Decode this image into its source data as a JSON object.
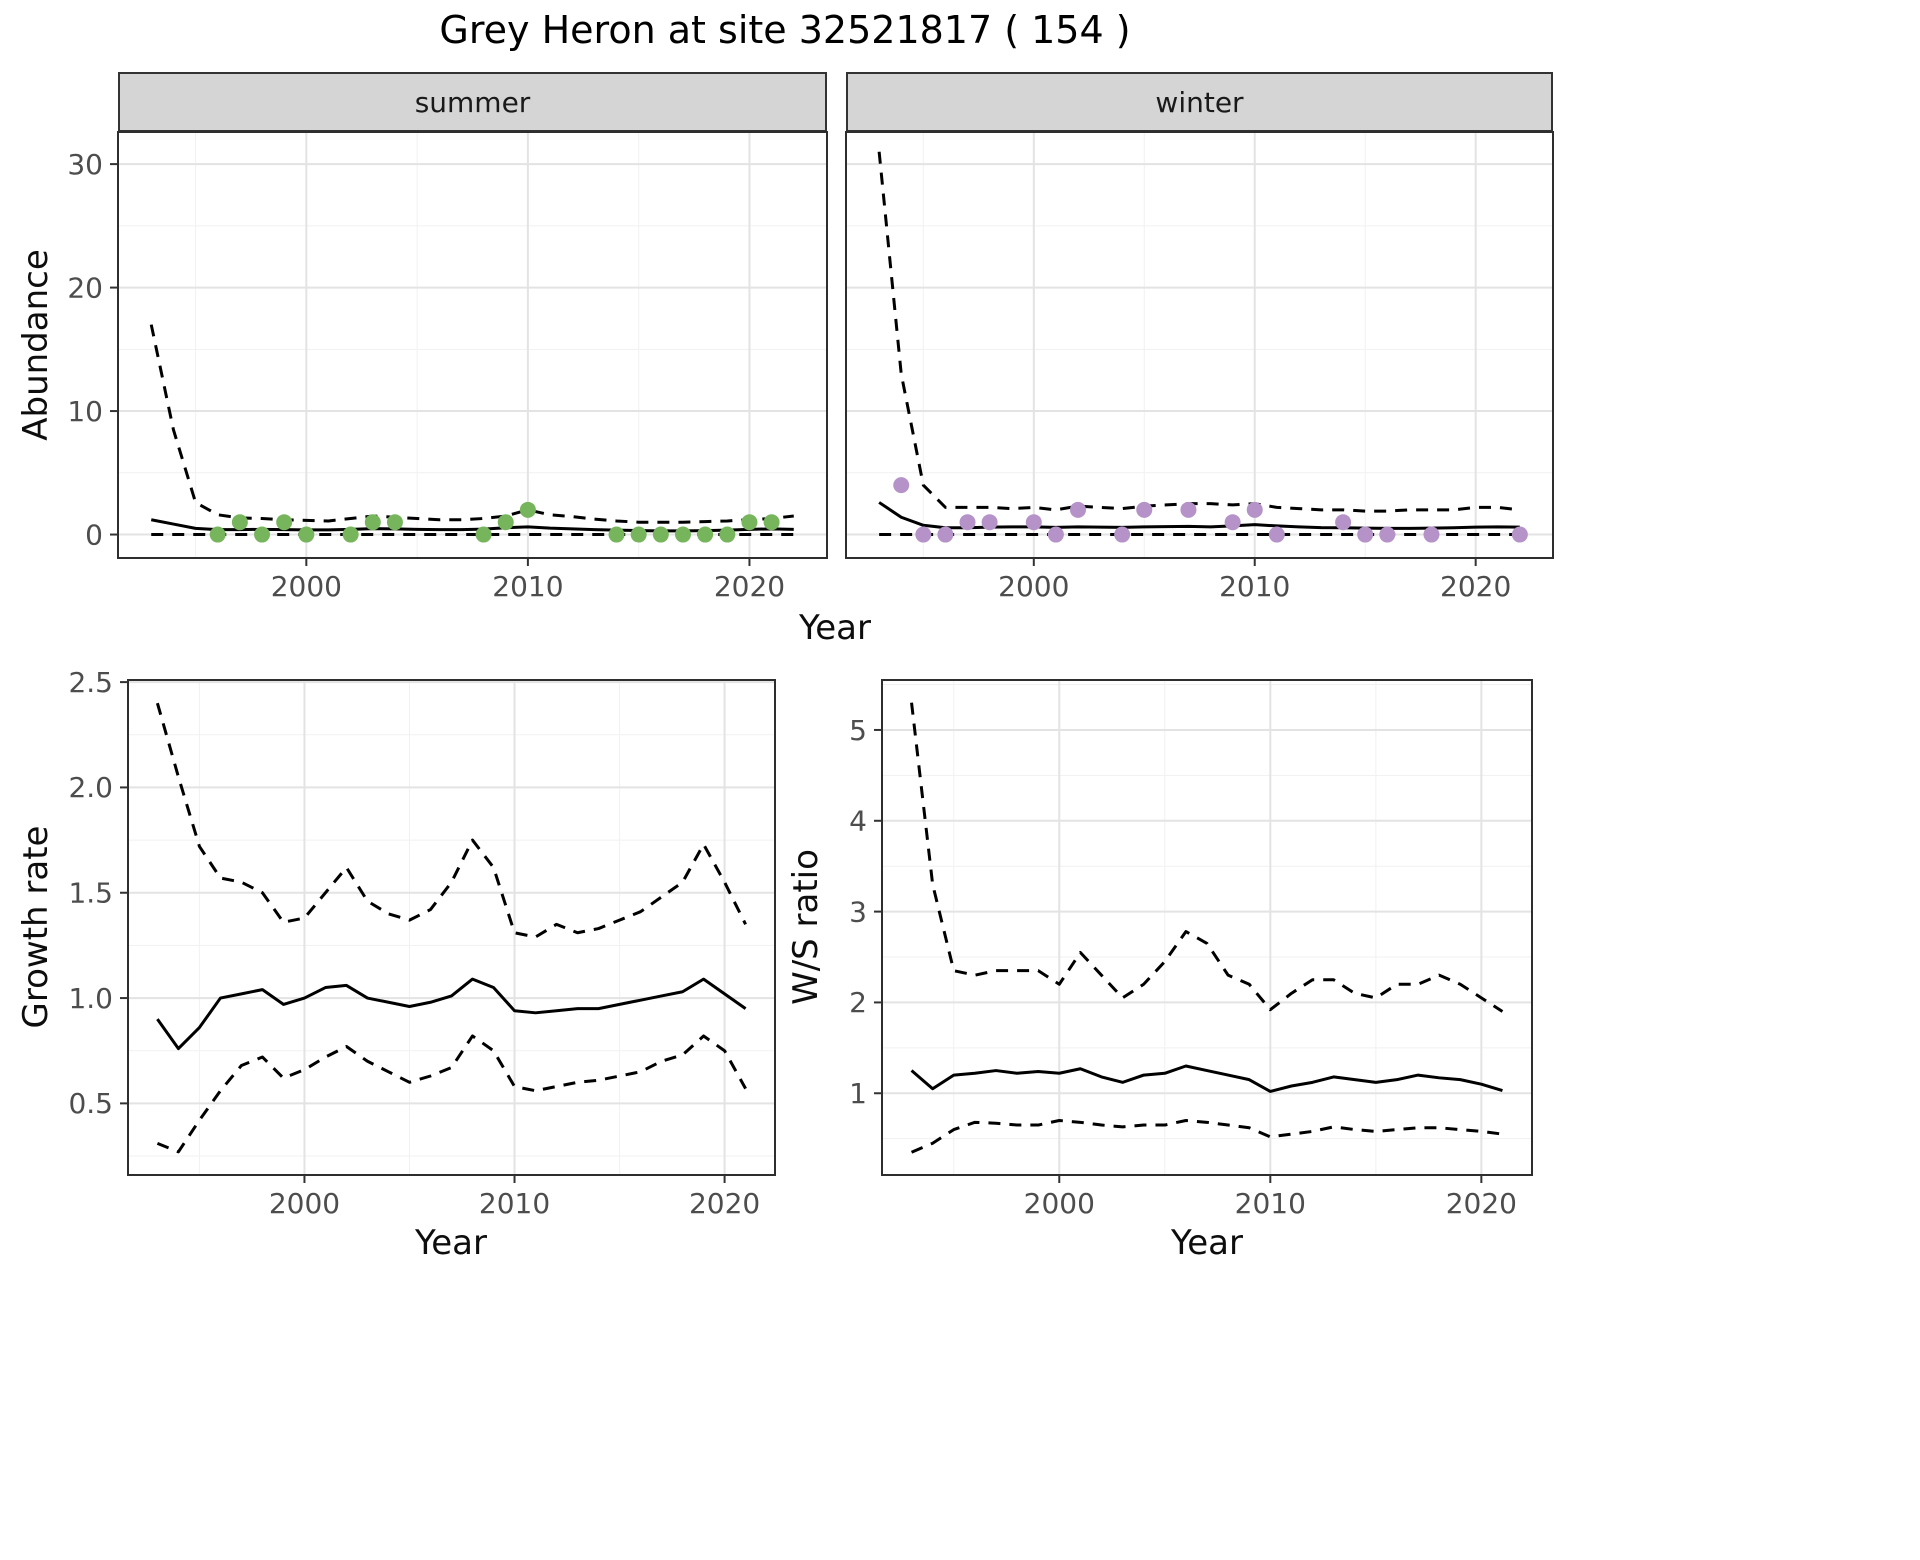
{
  "title": "Grey Heron at site 32521817 ( 154 )",
  "theme": {
    "panel_bg": "#ffffff",
    "grid_major": "#e3e3e3",
    "grid_minor": "#f1f1f1",
    "panel_border": "#2e2e2e",
    "strip_bg": "#d5d5d5",
    "line": "#000000",
    "tick": "#333333",
    "tick_text": "#4d4d4d",
    "summer_point": "#77b55d",
    "winter_point": "#b593c8"
  },
  "chart_data": [
    {
      "id": "abundance-summer",
      "type": "line",
      "facet_label": "summer",
      "xlabel": "Year",
      "ylabel": "Abundance",
      "xlim": [
        1991.5,
        2023.5
      ],
      "ylim": [
        -1.9,
        32.6
      ],
      "xticks": [
        {
          "v": 2000,
          "label": "2000"
        },
        {
          "v": 2010,
          "label": "2010"
        },
        {
          "v": 2020,
          "label": "2020"
        }
      ],
      "xminor": [
        1995,
        2005,
        2015
      ],
      "yticks": [
        {
          "v": 0,
          "label": "0"
        },
        {
          "v": 10,
          "label": "10"
        },
        {
          "v": 20,
          "label": "20"
        },
        {
          "v": 30,
          "label": "30"
        }
      ],
      "yminor": [
        5,
        15,
        25
      ],
      "years": [
        1993,
        1994,
        1995,
        1996,
        1997,
        1998,
        1999,
        2000,
        2001,
        2002,
        2003,
        2004,
        2005,
        2006,
        2007,
        2008,
        2009,
        2010,
        2011,
        2012,
        2013,
        2014,
        2015,
        2016,
        2017,
        2018,
        2019,
        2020,
        2021,
        2022
      ],
      "series": [
        {
          "name": "upper-ci",
          "style": "dashed",
          "values": [
            17,
            8.5,
            2.6,
            1.6,
            1.35,
            1.3,
            1.2,
            1.15,
            1.1,
            1.3,
            1.5,
            1.4,
            1.3,
            1.2,
            1.2,
            1.3,
            1.5,
            2,
            1.6,
            1.45,
            1.25,
            1.1,
            1,
            1,
            1,
            1.05,
            1.1,
            1.2,
            1.3,
            1.5
          ]
        },
        {
          "name": "median",
          "style": "solid",
          "values": [
            1.2,
            0.85,
            0.5,
            0.4,
            0.4,
            0.42,
            0.4,
            0.38,
            0.38,
            0.42,
            0.48,
            0.46,
            0.42,
            0.4,
            0.4,
            0.44,
            0.55,
            0.62,
            0.52,
            0.46,
            0.4,
            0.36,
            0.32,
            0.3,
            0.3,
            0.32,
            0.36,
            0.42,
            0.46,
            0.42
          ]
        },
        {
          "name": "lower-ci",
          "style": "dashed",
          "values": [
            0,
            0,
            0,
            0,
            0,
            0,
            0,
            0,
            0,
            0,
            0,
            0,
            0,
            0,
            0,
            0,
            0,
            0,
            0,
            0,
            0,
            0,
            0,
            0,
            0,
            0,
            0,
            0,
            0,
            0
          ]
        }
      ],
      "points": {
        "name": "observed-counts",
        "color": "#77b55d",
        "x": [
          1996,
          1997,
          1998,
          1999,
          2000,
          2002,
          2003,
          2004,
          2008,
          2009,
          2010,
          2014,
          2015,
          2016,
          2017,
          2018,
          2019,
          2020,
          2021
        ],
        "y": [
          0,
          1,
          0,
          1,
          0,
          0,
          1,
          1,
          0,
          1,
          2,
          0,
          0,
          0,
          0,
          0,
          0,
          1,
          1
        ]
      }
    },
    {
      "id": "abundance-winter",
      "type": "line",
      "facet_label": "winter",
      "xlabel": "Year",
      "ylabel": "Abundance",
      "xlim": [
        1991.5,
        2023.5
      ],
      "ylim": [
        -1.9,
        32.6
      ],
      "xticks": [
        {
          "v": 2000,
          "label": "2000"
        },
        {
          "v": 2010,
          "label": "2010"
        },
        {
          "v": 2020,
          "label": "2020"
        }
      ],
      "xminor": [
        1995,
        2005,
        2015
      ],
      "yticks": [
        {
          "v": 0,
          "label": "0"
        },
        {
          "v": 10,
          "label": "10"
        },
        {
          "v": 20,
          "label": "20"
        },
        {
          "v": 30,
          "label": "30"
        }
      ],
      "yminor": [
        5,
        15,
        25
      ],
      "years": [
        1993,
        1994,
        1995,
        1996,
        1997,
        1998,
        1999,
        2000,
        2001,
        2002,
        2003,
        2004,
        2005,
        2006,
        2007,
        2008,
        2009,
        2010,
        2011,
        2012,
        2013,
        2014,
        2015,
        2016,
        2017,
        2018,
        2019,
        2020,
        2021,
        2022
      ],
      "series": [
        {
          "name": "upper-ci",
          "style": "dashed",
          "values": [
            31,
            13,
            4,
            2.2,
            2.2,
            2.2,
            2.1,
            2.2,
            2,
            2.3,
            2.2,
            2.1,
            2.3,
            2.4,
            2.5,
            2.5,
            2.4,
            2.5,
            2.2,
            2.1,
            2,
            2,
            1.9,
            1.9,
            2,
            2,
            2,
            2.2,
            2.2,
            2
          ]
        },
        {
          "name": "median",
          "style": "solid",
          "values": [
            2.6,
            1.4,
            0.75,
            0.55,
            0.55,
            0.6,
            0.62,
            0.62,
            0.58,
            0.62,
            0.6,
            0.58,
            0.62,
            0.64,
            0.66,
            0.62,
            0.7,
            0.8,
            0.7,
            0.62,
            0.56,
            0.55,
            0.52,
            0.5,
            0.5,
            0.52,
            0.55,
            0.6,
            0.62,
            0.6
          ]
        },
        {
          "name": "lower-ci",
          "style": "dashed",
          "values": [
            0,
            0,
            0,
            0,
            0,
            0,
            0,
            0,
            0,
            0,
            0,
            0,
            0,
            0,
            0,
            0,
            0,
            0,
            0,
            0,
            0,
            0,
            0,
            0,
            0,
            0,
            0,
            0,
            0,
            0
          ]
        }
      ],
      "points": {
        "name": "observed-counts",
        "color": "#b593c8",
        "x": [
          1994,
          1995,
          1996,
          1997,
          1998,
          2000,
          2001,
          2002,
          2004,
          2005,
          2007,
          2009,
          2010,
          2011,
          2014,
          2015,
          2016,
          2018,
          2022
        ],
        "y": [
          4,
          0,
          0,
          1,
          1,
          1,
          0,
          2,
          0,
          2,
          2,
          1,
          2,
          0,
          1,
          0,
          0,
          0,
          0
        ]
      }
    },
    {
      "id": "growth-rate",
      "type": "line",
      "facet_label": "",
      "xlabel": "Year",
      "ylabel": "Growth rate",
      "xlim": [
        1991.6,
        2022.4
      ],
      "ylim": [
        0.16,
        2.51
      ],
      "xticks": [
        {
          "v": 2000,
          "label": "2000"
        },
        {
          "v": 2010,
          "label": "2010"
        },
        {
          "v": 2020,
          "label": "2020"
        }
      ],
      "xminor": [
        1995,
        2005,
        2015
      ],
      "yticks": [
        {
          "v": 0.5,
          "label": "0.5"
        },
        {
          "v": 1.0,
          "label": "1.0"
        },
        {
          "v": 1.5,
          "label": "1.5"
        },
        {
          "v": 2.0,
          "label": "2.0"
        },
        {
          "v": 2.5,
          "label": "2.5"
        }
      ],
      "yminor": [
        0.25,
        0.75,
        1.25,
        1.75,
        2.25
      ],
      "years": [
        1993,
        1994,
        1995,
        1996,
        1997,
        1998,
        1999,
        2000,
        2001,
        2002,
        2003,
        2004,
        2005,
        2006,
        2007,
        2008,
        2009,
        2010,
        2011,
        2012,
        2013,
        2014,
        2015,
        2016,
        2017,
        2018,
        2019,
        2020,
        2021
      ],
      "series": [
        {
          "name": "upper-ci",
          "style": "dashed",
          "values": [
            2.4,
            2.05,
            1.72,
            1.57,
            1.55,
            1.5,
            1.36,
            1.38,
            1.5,
            1.62,
            1.46,
            1.4,
            1.37,
            1.42,
            1.55,
            1.75,
            1.62,
            1.31,
            1.29,
            1.35,
            1.31,
            1.33,
            1.37,
            1.41,
            1.48,
            1.55,
            1.73,
            1.55,
            1.35
          ]
        },
        {
          "name": "median",
          "style": "solid",
          "values": [
            0.9,
            0.76,
            0.86,
            1,
            1.02,
            1.04,
            0.97,
            1,
            1.05,
            1.06,
            1,
            0.98,
            0.96,
            0.98,
            1.01,
            1.09,
            1.05,
            0.94,
            0.93,
            0.94,
            0.95,
            0.95,
            0.97,
            0.99,
            1.01,
            1.03,
            1.09,
            1.02,
            0.95
          ]
        },
        {
          "name": "lower-ci",
          "style": "dashed",
          "values": [
            0.31,
            0.27,
            0.42,
            0.56,
            0.68,
            0.72,
            0.62,
            0.66,
            0.72,
            0.77,
            0.7,
            0.65,
            0.6,
            0.63,
            0.67,
            0.82,
            0.75,
            0.58,
            0.56,
            0.58,
            0.6,
            0.61,
            0.63,
            0.65,
            0.7,
            0.73,
            0.82,
            0.75,
            0.57
          ]
        }
      ]
    },
    {
      "id": "ws-ratio",
      "type": "line",
      "facet_label": "",
      "xlabel": "Year",
      "ylabel": "W/S ratio",
      "xlim": [
        1991.6,
        2022.4
      ],
      "ylim": [
        0.1,
        5.55
      ],
      "xticks": [
        {
          "v": 2000,
          "label": "2000"
        },
        {
          "v": 2010,
          "label": "2010"
        },
        {
          "v": 2020,
          "label": "2020"
        }
      ],
      "xminor": [
        1995,
        2005,
        2015
      ],
      "yticks": [
        {
          "v": 1,
          "label": "1"
        },
        {
          "v": 2,
          "label": "2"
        },
        {
          "v": 3,
          "label": "3"
        },
        {
          "v": 4,
          "label": "4"
        },
        {
          "v": 5,
          "label": "5"
        }
      ],
      "yminor": [
        0.5,
        1.5,
        2.5,
        3.5,
        4.5,
        5.5
      ],
      "years": [
        1993,
        1994,
        1995,
        1996,
        1997,
        1998,
        1999,
        2000,
        2001,
        2002,
        2003,
        2004,
        2005,
        2006,
        2007,
        2008,
        2009,
        2010,
        2011,
        2012,
        2013,
        2014,
        2015,
        2016,
        2017,
        2018,
        2019,
        2020,
        2021
      ],
      "series": [
        {
          "name": "upper-ci",
          "style": "dashed",
          "values": [
            5.3,
            3.3,
            2.35,
            2.3,
            2.35,
            2.35,
            2.35,
            2.2,
            2.55,
            2.3,
            2.05,
            2.2,
            2.45,
            2.78,
            2.65,
            2.3,
            2.2,
            1.92,
            2.1,
            2.25,
            2.25,
            2.1,
            2.05,
            2.2,
            2.2,
            2.3,
            2.2,
            2.05,
            1.9
          ]
        },
        {
          "name": "median",
          "style": "solid",
          "values": [
            1.25,
            1.05,
            1.2,
            1.22,
            1.25,
            1.22,
            1.24,
            1.22,
            1.27,
            1.18,
            1.12,
            1.2,
            1.22,
            1.3,
            1.25,
            1.2,
            1.15,
            1.02,
            1.08,
            1.12,
            1.18,
            1.15,
            1.12,
            1.15,
            1.2,
            1.17,
            1.15,
            1.1,
            1.03
          ]
        },
        {
          "name": "lower-ci",
          "style": "dashed",
          "values": [
            0.35,
            0.45,
            0.6,
            0.68,
            0.67,
            0.65,
            0.65,
            0.7,
            0.68,
            0.65,
            0.63,
            0.65,
            0.65,
            0.7,
            0.68,
            0.65,
            0.62,
            0.52,
            0.55,
            0.58,
            0.63,
            0.6,
            0.58,
            0.6,
            0.62,
            0.62,
            0.6,
            0.58,
            0.55
          ]
        }
      ]
    }
  ]
}
